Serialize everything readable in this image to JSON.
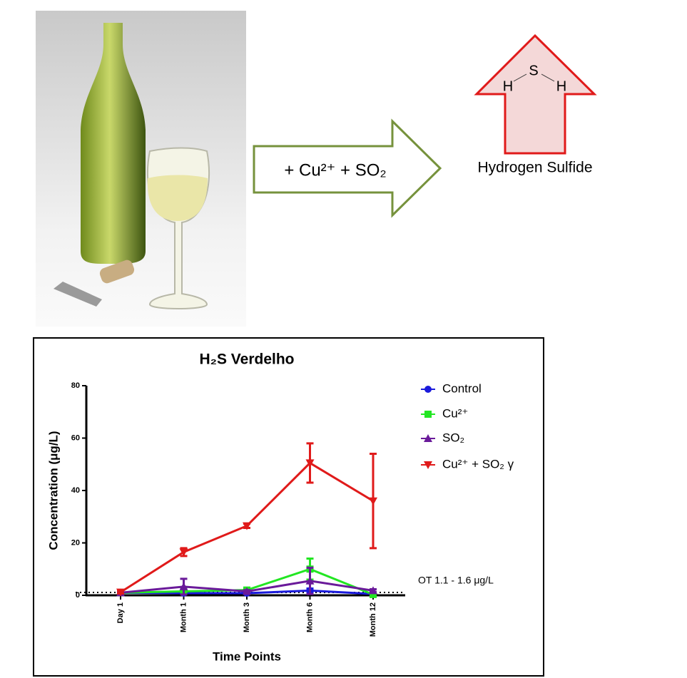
{
  "diagram": {
    "arrow_label": "+ Cu²⁺ + SO₂",
    "molecule_atoms": [
      "H",
      "S",
      "H"
    ],
    "molecule_name": "Hydrogen Sulfide"
  },
  "chart_data": {
    "type": "line",
    "title": "H₂S Verdelho",
    "x_label": "Time Points",
    "y_label": "Concentration (μg/L)",
    "categories": [
      "Day 1",
      "Month 1",
      "Month 3",
      "Month 6",
      "Month 12"
    ],
    "ylim": [
      0,
      80
    ],
    "yticks": [
      0,
      20,
      40,
      60,
      80
    ],
    "series": [
      {
        "name": "Control",
        "color": "#1a1adc",
        "marker": "circle",
        "values": [
          1,
          0.8,
          0.8,
          1.8,
          0.5
        ],
        "errors": [
          0.3,
          0.3,
          0.3,
          0.8,
          0.2
        ]
      },
      {
        "name": "Cu²⁺",
        "color": "#22e622",
        "marker": "square",
        "values": [
          1,
          1.5,
          2,
          10,
          0.3
        ],
        "errors": [
          0.3,
          0.5,
          0.5,
          4,
          0.3
        ]
      },
      {
        "name": "SO₂",
        "color": "#6a1a9a",
        "marker": "triangle-up",
        "values": [
          1,
          3.3,
          1.5,
          5.5,
          1.8
        ],
        "errors": [
          0.3,
          3,
          0.5,
          5,
          0.5
        ]
      },
      {
        "name": "Cu²⁺ + SO₂  γ",
        "color": "#e01a1a",
        "marker": "triangle-down",
        "values": [
          1.2,
          16.5,
          26.5,
          50.5,
          36
        ],
        "errors": [
          0.5,
          1.5,
          0.8,
          7.5,
          18
        ]
      }
    ],
    "threshold": 1.1,
    "threshold_label": "OT 1.1 - 1.6  μg/L",
    "legend": "right"
  }
}
